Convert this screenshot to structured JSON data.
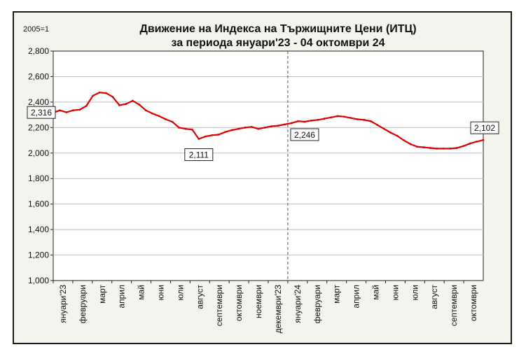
{
  "chart_data": {
    "type": "line",
    "title_line1": "Движение на Индекса на Тържищните Цени (ИТЦ)",
    "title_line2": "за периода януари'23 - 04 октомври 24",
    "unit_label": "2005=1",
    "ylim": [
      1.0,
      2.8
    ],
    "yticks": [
      "1,000",
      "1,200",
      "1,400",
      "1,600",
      "1,800",
      "2,000",
      "2,200",
      "2,400",
      "2,600",
      "2,800"
    ],
    "ytick_values": [
      1.0,
      1.2,
      1.4,
      1.6,
      1.8,
      2.0,
      2.2,
      2.4,
      2.6,
      2.8
    ],
    "months": [
      "януари'23",
      "февруари",
      "март",
      "април",
      "май",
      "юни",
      "юли",
      "август",
      "септември",
      "октомври",
      "ноември",
      "декември'23",
      "януари'24",
      "февруари",
      "март",
      "април",
      "май",
      "юни",
      "юли",
      "август",
      "септември",
      "октомври"
    ],
    "year_divider_index": 12,
    "series_color": "#e00000",
    "values": [
      2.316,
      2.335,
      2.32,
      2.335,
      2.34,
      2.37,
      2.45,
      2.475,
      2.47,
      2.44,
      2.375,
      2.385,
      2.41,
      2.38,
      2.335,
      2.31,
      2.29,
      2.265,
      2.245,
      2.2,
      2.19,
      2.185,
      2.111,
      2.13,
      2.14,
      2.145,
      2.165,
      2.18,
      2.19,
      2.2,
      2.205,
      2.19,
      2.2,
      2.21,
      2.215,
      2.225,
      2.235,
      2.25,
      2.246,
      2.255,
      2.26,
      2.27,
      2.28,
      2.29,
      2.285,
      2.275,
      2.265,
      2.26,
      2.25,
      2.22,
      2.19,
      2.16,
      2.135,
      2.1,
      2.07,
      2.05,
      2.045,
      2.04,
      2.035,
      2.035,
      2.035,
      2.04,
      2.055,
      2.075,
      2.09,
      2.102
    ],
    "annotations": [
      {
        "text": "2,316",
        "index": 0
      },
      {
        "text": "2,111",
        "index": 22
      },
      {
        "text": "2,246",
        "index": 38
      },
      {
        "text": "2,102",
        "index": 65
      }
    ]
  }
}
